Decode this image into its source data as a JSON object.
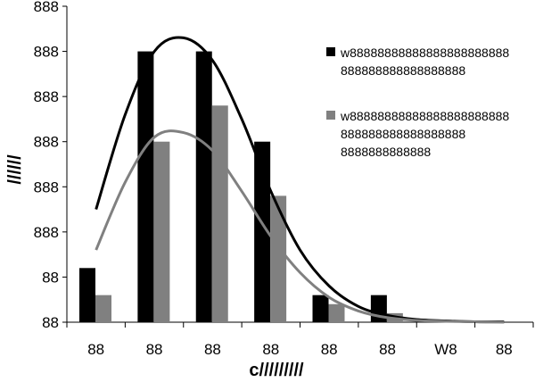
{
  "chart_data": {
    "type": "bar",
    "title": "",
    "xlabel": "c/////////",
    "ylabel": "//////",
    "categories": [
      "88",
      "88",
      "88",
      "88",
      "88",
      "88",
      "W8",
      "88"
    ],
    "y_tick_labels": [
      "88",
      "88",
      "888",
      "888",
      "888",
      "888",
      "888",
      "888"
    ],
    "y_top_label": "888",
    "ylim": [
      0,
      7
    ],
    "series": [
      {
        "name": "w8888888888888888888888888888888888888888",
        "color": "#000000",
        "values": [
          1.2,
          6.0,
          6.0,
          4.0,
          0.6,
          0.6,
          0,
          0
        ]
      },
      {
        "name": "w888888888888888888888888888888888888888888888888888",
        "color": "#808080",
        "values": [
          0.6,
          4.0,
          4.8,
          2.8,
          0.4,
          0.2,
          0,
          0
        ]
      }
    ],
    "curves": [
      {
        "series": 0,
        "color": "#000000",
        "x": [
          0.5,
          1.0,
          1.5,
          2.0,
          2.5,
          3.0,
          3.5,
          4.0,
          4.5,
          5.0,
          5.5,
          6.0,
          6.5,
          7.0,
          7.5
        ],
        "y": [
          2.5,
          4.6,
          6.0,
          6.3,
          5.8,
          4.5,
          2.9,
          1.6,
          0.8,
          0.35,
          0.15,
          0.06,
          0.03,
          0.01,
          0.01
        ]
      },
      {
        "series": 1,
        "color": "#808080",
        "x": [
          0.5,
          1.0,
          1.5,
          2.0,
          2.5,
          3.0,
          3.5,
          4.0,
          4.5,
          5.0,
          5.5,
          6.0,
          6.5,
          7.0,
          7.5
        ],
        "y": [
          1.6,
          3.1,
          4.1,
          4.2,
          3.8,
          2.9,
          1.9,
          1.1,
          0.55,
          0.25,
          0.1,
          0.04,
          0.02,
          0.01,
          0.0
        ]
      }
    ],
    "legend": {
      "position": "top-right",
      "entries": [
        {
          "color": "#000000",
          "lines": [
            "w88888888888888888888888",
            "888888888888888888"
          ]
        },
        {
          "color": "#808080",
          "lines": [
            "w88888888888888888888888",
            "888888888888888888",
            "8888888888888"
          ]
        }
      ]
    }
  }
}
